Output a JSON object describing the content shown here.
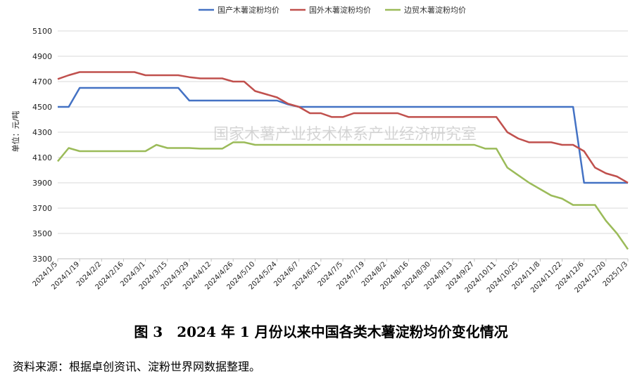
{
  "chart_data": {
    "type": "line",
    "title": "",
    "xlabel": "",
    "ylabel": "单位：元/吨",
    "ylim": [
      3300,
      5100
    ],
    "yticks": [
      3300,
      3500,
      3700,
      3900,
      4100,
      4300,
      4500,
      4700,
      4900,
      5100
    ],
    "grid": "horizontal",
    "legend_position": "top-center",
    "categories": [
      "2024/1/5",
      "2024/1/12",
      "2024/1/19",
      "2024/1/26",
      "2024/2/2",
      "2024/2/9",
      "2024/2/16",
      "2024/2/23",
      "2024/3/1",
      "2024/3/8",
      "2024/3/15",
      "2024/3/22",
      "2024/3/29",
      "2024/4/5",
      "2024/4/12",
      "2024/4/19",
      "2024/4/26",
      "2024/5/3",
      "2024/5/10",
      "2024/5/17",
      "2024/5/24",
      "2024/5/31",
      "2024/6/7",
      "2024/6/14",
      "2024/6/21",
      "2024/6/28",
      "2024/7/5",
      "2024/7/12",
      "2024/7/19",
      "2024/7/26",
      "2024/8/2",
      "2024/8/9",
      "2024/8/16",
      "2024/8/23",
      "2024/8/30",
      "2024/9/6",
      "2024/9/13",
      "2024/9/20",
      "2024/9/27",
      "2024/10/4",
      "2024/10/11",
      "2024/10/18",
      "2024/10/25",
      "2024/11/1",
      "2024/11/8",
      "2024/11/15",
      "2024/11/22",
      "2024/11/29",
      "2024/12/6",
      "2024/12/13",
      "2024/12/20",
      "2024/12/27",
      "2025/1/3"
    ],
    "tick_labels": [
      "2024/1/5",
      "2024/1/19",
      "2024/2/2",
      "2024/2/16",
      "2024/3/1",
      "2024/3/15",
      "2024/3/29",
      "2024/4/12",
      "2024/4/26",
      "2024/5/10",
      "2024/5/24",
      "2024/6/7",
      "2024/6/21",
      "2024/7/5",
      "2024/7/19",
      "2024/8/2",
      "2024/8/16",
      "2024/8/30",
      "2024/9/13",
      "2024/9/27",
      "2024/10/11",
      "2024/10/25",
      "2024/11/8",
      "2024/11/22",
      "2024/12/6",
      "2024/12/20",
      "2025/1/3"
    ],
    "series": [
      {
        "name": "国产木薯淀粉均价",
        "color": "#4472C4",
        "values": [
          4500,
          4500,
          4650,
          4650,
          4650,
          4650,
          4650,
          4650,
          4650,
          4650,
          4650,
          4650,
          4550,
          4550,
          4550,
          4550,
          4550,
          4550,
          4550,
          4550,
          4550,
          4520,
          4500,
          4500,
          4500,
          4500,
          4500,
          4500,
          4500,
          4500,
          4500,
          4500,
          4500,
          4500,
          4500,
          4500,
          4500,
          4500,
          4500,
          4500,
          4500,
          4500,
          4500,
          4500,
          4500,
          4500,
          4500,
          4500,
          3900,
          3900,
          3900,
          3900,
          3900
        ]
      },
      {
        "name": "国外木薯淀粉均价",
        "color": "#C0504D",
        "values": [
          4720,
          4750,
          4775,
          4775,
          4775,
          4775,
          4775,
          4775,
          4750,
          4750,
          4750,
          4750,
          4735,
          4725,
          4725,
          4725,
          4700,
          4700,
          4625,
          4600,
          4575,
          4525,
          4500,
          4450,
          4450,
          4420,
          4420,
          4450,
          4450,
          4450,
          4450,
          4450,
          4420,
          4420,
          4420,
          4420,
          4420,
          4420,
          4420,
          4420,
          4420,
          4300,
          4250,
          4220,
          4220,
          4220,
          4200,
          4200,
          4150,
          4020,
          3975,
          3950,
          3900
        ]
      },
      {
        "name": "边贸木薯淀粉均价",
        "color": "#9BBB59",
        "values": [
          4070,
          4175,
          4150,
          4150,
          4150,
          4150,
          4150,
          4150,
          4150,
          4200,
          4175,
          4175,
          4175,
          4170,
          4170,
          4170,
          4220,
          4220,
          4200,
          4200,
          4200,
          4200,
          4200,
          4200,
          4200,
          4200,
          4200,
          4200,
          4200,
          4200,
          4200,
          4200,
          4200,
          4200,
          4200,
          4200,
          4200,
          4200,
          4200,
          4170,
          4170,
          4020,
          3960,
          3900,
          3850,
          3800,
          3775,
          3725,
          3725,
          3725,
          3600,
          3500,
          3375
        ]
      }
    ]
  },
  "watermark": "国家木薯产业技术体系产业经济研究室",
  "caption": "图 3　2024 年 1 月份以来中国各类木薯淀粉均价变化情况",
  "source": "资料来源：根据卓创资讯、淀粉世界网数据整理。"
}
